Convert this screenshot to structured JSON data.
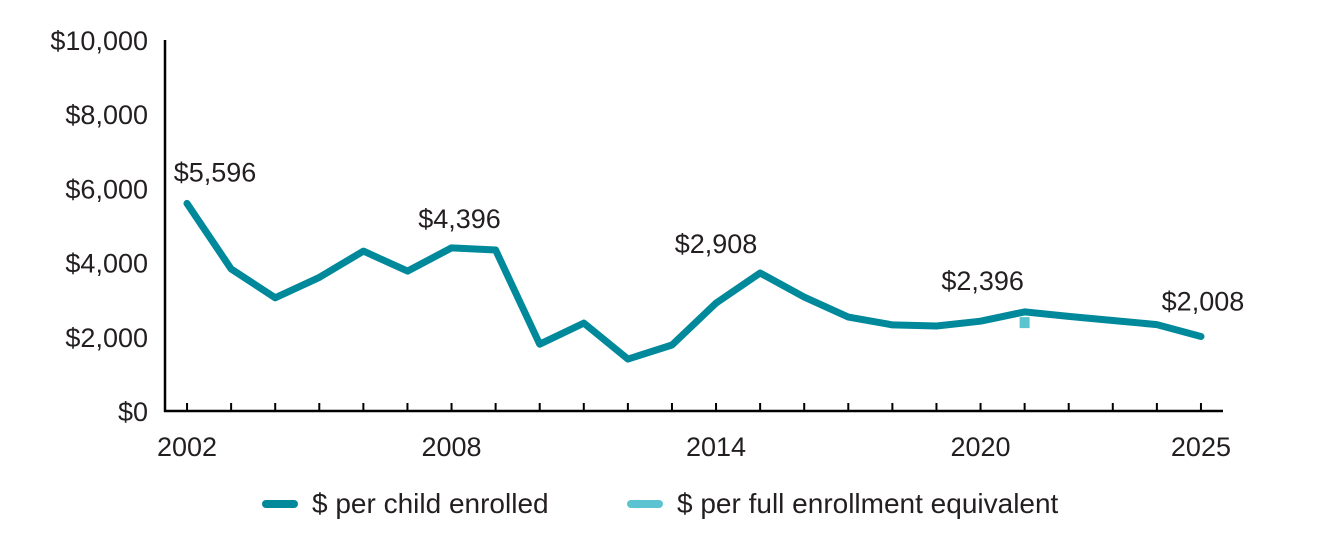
{
  "chart_data": {
    "type": "line",
    "title": "",
    "xlabel": "",
    "ylabel": "",
    "ylim": [
      0,
      10000
    ],
    "y_ticks": [
      0,
      2000,
      4000,
      6000,
      8000,
      10000
    ],
    "y_tick_labels": [
      "$0",
      "$2,000",
      "$4,000",
      "$6,000",
      "$8,000",
      "$10,000"
    ],
    "x": [
      2002,
      2003,
      2004,
      2005,
      2006,
      2007,
      2008,
      2009,
      2010,
      2011,
      2012,
      2013,
      2014,
      2015,
      2016,
      2017,
      2018,
      2019,
      2020,
      2021,
      2022,
      2023,
      2024,
      2025
    ],
    "x_tick_labels": [
      {
        "year": 2002,
        "label": "2002"
      },
      {
        "year": 2008,
        "label": "2008"
      },
      {
        "year": 2014,
        "label": "2014"
      },
      {
        "year": 2020,
        "label": "2020"
      },
      {
        "year": 2025,
        "label": "2025"
      }
    ],
    "grid": false,
    "legend_position": "bottom",
    "series": [
      {
        "name": "$ per child enrolled",
        "color": "#00899b",
        "style": "line",
        "values": [
          5596,
          3830,
          3050,
          3600,
          4310,
          3770,
          4396,
          4340,
          1800,
          2370,
          1400,
          1780,
          2908,
          3720,
          3070,
          2530,
          2320,
          2290,
          2420,
          2670,
          2550,
          2440,
          2330,
          2008
        ]
      },
      {
        "name": "$ per full enrollment equivalent",
        "color": "#5bc4d0",
        "style": "marker",
        "points": [
          {
            "x": 2021,
            "y": 2396
          }
        ]
      }
    ],
    "annotations": [
      {
        "x": 2002,
        "value": 5596,
        "text": "$5,596"
      },
      {
        "x": 2008,
        "value": 4396,
        "text": "$4,396"
      },
      {
        "x": 2014,
        "value": 2908,
        "text": "$2,908"
      },
      {
        "x": 2021,
        "value": 2396,
        "text": "$2,396"
      },
      {
        "x": 2025,
        "value": 2008,
        "text": "$2,008"
      }
    ]
  },
  "legend": {
    "items": [
      {
        "label": "$ per child enrolled",
        "color": "#00899b"
      },
      {
        "label": "$ per full enrollment equivalent",
        "color": "#5bc4d0"
      }
    ]
  }
}
